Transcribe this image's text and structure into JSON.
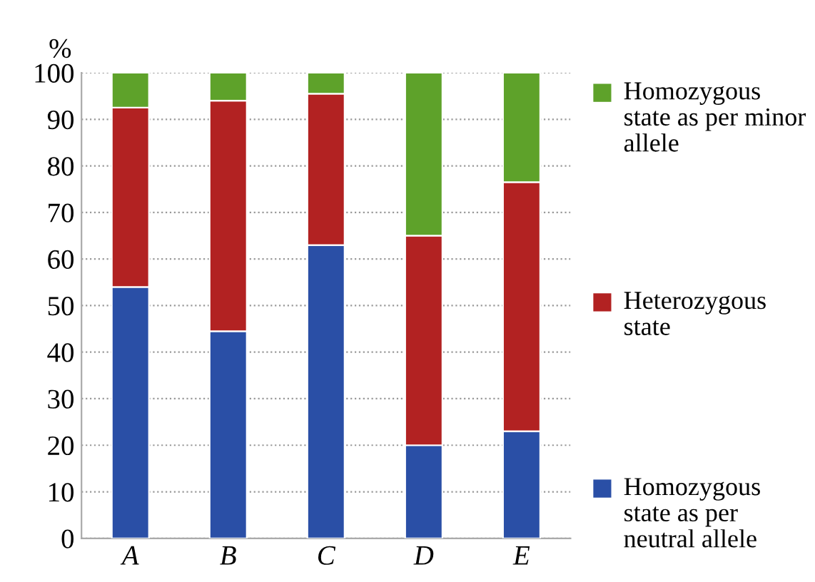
{
  "chart_data": {
    "type": "bar",
    "stacked": true,
    "ylabel": "%",
    "categories": [
      "A",
      "B",
      "C",
      "D",
      "E"
    ],
    "series": [
      {
        "name": "Homozygous state as per neutral allele",
        "color": "#2a4fa6",
        "values": [
          54,
          44.5,
          63,
          20,
          23
        ]
      },
      {
        "name": "Heterozygous state",
        "color": "#b22222",
        "values": [
          38.5,
          49.5,
          32.5,
          45,
          53.5
        ]
      },
      {
        "name": "Homozygous state as per minor allele",
        "color": "#5ea22a",
        "values": [
          7.5,
          6,
          4.5,
          35,
          23.5
        ]
      }
    ],
    "ylim": [
      0,
      100
    ],
    "yticks": [
      0,
      10,
      20,
      30,
      40,
      50,
      60,
      70,
      80,
      90,
      100
    ],
    "grid": "y",
    "legend": "right"
  }
}
